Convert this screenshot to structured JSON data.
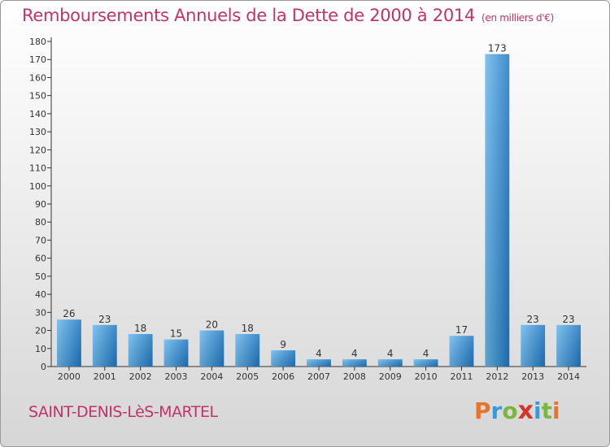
{
  "header": {
    "title": "Remboursements Annuels de la Dette de 2000 à 2014",
    "subtitle": "(en milliers d'€)"
  },
  "footer": {
    "commune": "SAINT-DENIS-LèS-MARTEL",
    "logo": "Proxiti"
  },
  "colors": {
    "title": "#c0336b",
    "bar_light": "#6cb8ee",
    "bar_dark": "#1f78c1",
    "logo_letters": [
      "#e8732a",
      "#3a9ad9",
      "#7ab83c",
      "#d8332b",
      "#3a9ad9",
      "#7ab83c",
      "#e8732a"
    ]
  },
  "chart_data": {
    "type": "bar",
    "title": "Remboursements Annuels de la Dette de 2000 à 2014",
    "subtitle": "(en milliers d'€)",
    "categories": [
      "2000",
      "2001",
      "2002",
      "2003",
      "2004",
      "2005",
      "2006",
      "2007",
      "2008",
      "2009",
      "2010",
      "2011",
      "2012",
      "2013",
      "2014"
    ],
    "values": [
      26,
      23,
      18,
      15,
      20,
      18,
      9,
      4,
      4,
      4,
      4,
      17,
      173,
      23,
      23
    ],
    "ylim": [
      0,
      180
    ],
    "yticks": [
      0,
      10,
      20,
      30,
      40,
      50,
      60,
      70,
      80,
      90,
      100,
      110,
      120,
      130,
      140,
      150,
      160,
      170,
      180
    ],
    "grid": false,
    "legend": "none"
  }
}
